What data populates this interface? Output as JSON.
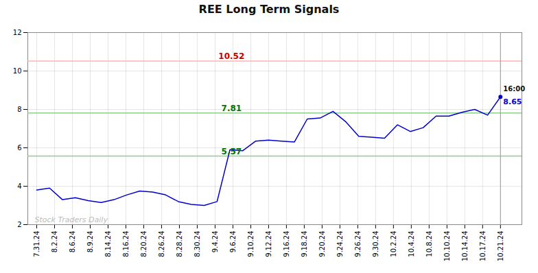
{
  "chart_data": {
    "type": "line",
    "title": "REE Long Term Signals",
    "x": [
      0,
      0.7222,
      1.4444,
      2.1667,
      2.8889,
      3.6111,
      4.3333,
      5.0556,
      5.7778,
      6.5,
      7.2222,
      7.9444,
      8.6667,
      9.3889,
      10.1111,
      10.8333,
      11.5556,
      12.2778,
      13,
      13.7222,
      14.4444,
      15.1667,
      15.8889,
      16.6111,
      17.3333,
      18.0556,
      18.7778,
      19.5,
      20.2222,
      20.9444,
      21.6667,
      22.3889,
      23.1111,
      23.8333,
      24.5556,
      25.2778,
      26
    ],
    "values": [
      3.8,
      3.9,
      3.3,
      3.4,
      3.25,
      3.15,
      3.3,
      3.55,
      3.75,
      3.7,
      3.55,
      3.2,
      3.05,
      3.0,
      3.2,
      5.9,
      5.85,
      6.35,
      6.4,
      6.35,
      6.3,
      7.5,
      7.55,
      7.9,
      7.35,
      6.6,
      6.55,
      6.5,
      7.2,
      6.85,
      7.05,
      7.65,
      7.65,
      7.85,
      8.0,
      7.7,
      8.65
    ],
    "color": "#0000cc",
    "xlim": [
      -0.5,
      27.2
    ],
    "xticks": [
      {
        "value": 0,
        "label": "7.31.24"
      },
      {
        "value": 1,
        "label": "8.2.24"
      },
      {
        "value": 2,
        "label": "8.6.24"
      },
      {
        "value": 3,
        "label": "8.9.24"
      },
      {
        "value": 4,
        "label": "8.14.24"
      },
      {
        "value": 5,
        "label": "8.16.24"
      },
      {
        "value": 6,
        "label": "8.20.24"
      },
      {
        "value": 7,
        "label": "8.26.24"
      },
      {
        "value": 8,
        "label": "8.28.24"
      },
      {
        "value": 9,
        "label": "8.30.24"
      },
      {
        "value": 10,
        "label": "9.4.24"
      },
      {
        "value": 11,
        "label": "9.6.24"
      },
      {
        "value": 12,
        "label": "9.10.24"
      },
      {
        "value": 13,
        "label": "9.12.24"
      },
      {
        "value": 14,
        "label": "9.16.24"
      },
      {
        "value": 15,
        "label": "9.18.24"
      },
      {
        "value": 16,
        "label": "9.20.24"
      },
      {
        "value": 17,
        "label": "9.24.24"
      },
      {
        "value": 18,
        "label": "9.26.24"
      },
      {
        "value": 19,
        "label": "9.30.24"
      },
      {
        "value": 20,
        "label": "10.2.24"
      },
      {
        "value": 21,
        "label": "10.4.24"
      },
      {
        "value": 22,
        "label": "10.8.24"
      },
      {
        "value": 23,
        "label": "10.10.24"
      },
      {
        "value": 24,
        "label": "10.14.24"
      },
      {
        "value": 25,
        "label": "10.17.24"
      },
      {
        "value": 26,
        "label": "10.21.24"
      }
    ],
    "ylim": [
      2,
      12
    ],
    "yticks": [
      2,
      4,
      6,
      8,
      10,
      12
    ],
    "grid": true,
    "reference_lines": [
      {
        "value": 10.52,
        "color": "#ffb3b3",
        "label_color": "#cc0000"
      },
      {
        "value": 7.81,
        "color": "#90cc90",
        "label_color": "#007700"
      },
      {
        "value": 5.57,
        "color": "#90cc90",
        "label_color": "#007700"
      }
    ],
    "last_point": {
      "label": "16:00",
      "value": 8.65,
      "label_color": "#111111",
      "value_color": "#0000cc"
    },
    "watermark": {
      "text": "Stock Traders Daily",
      "color": "#bbbbbb"
    }
  }
}
